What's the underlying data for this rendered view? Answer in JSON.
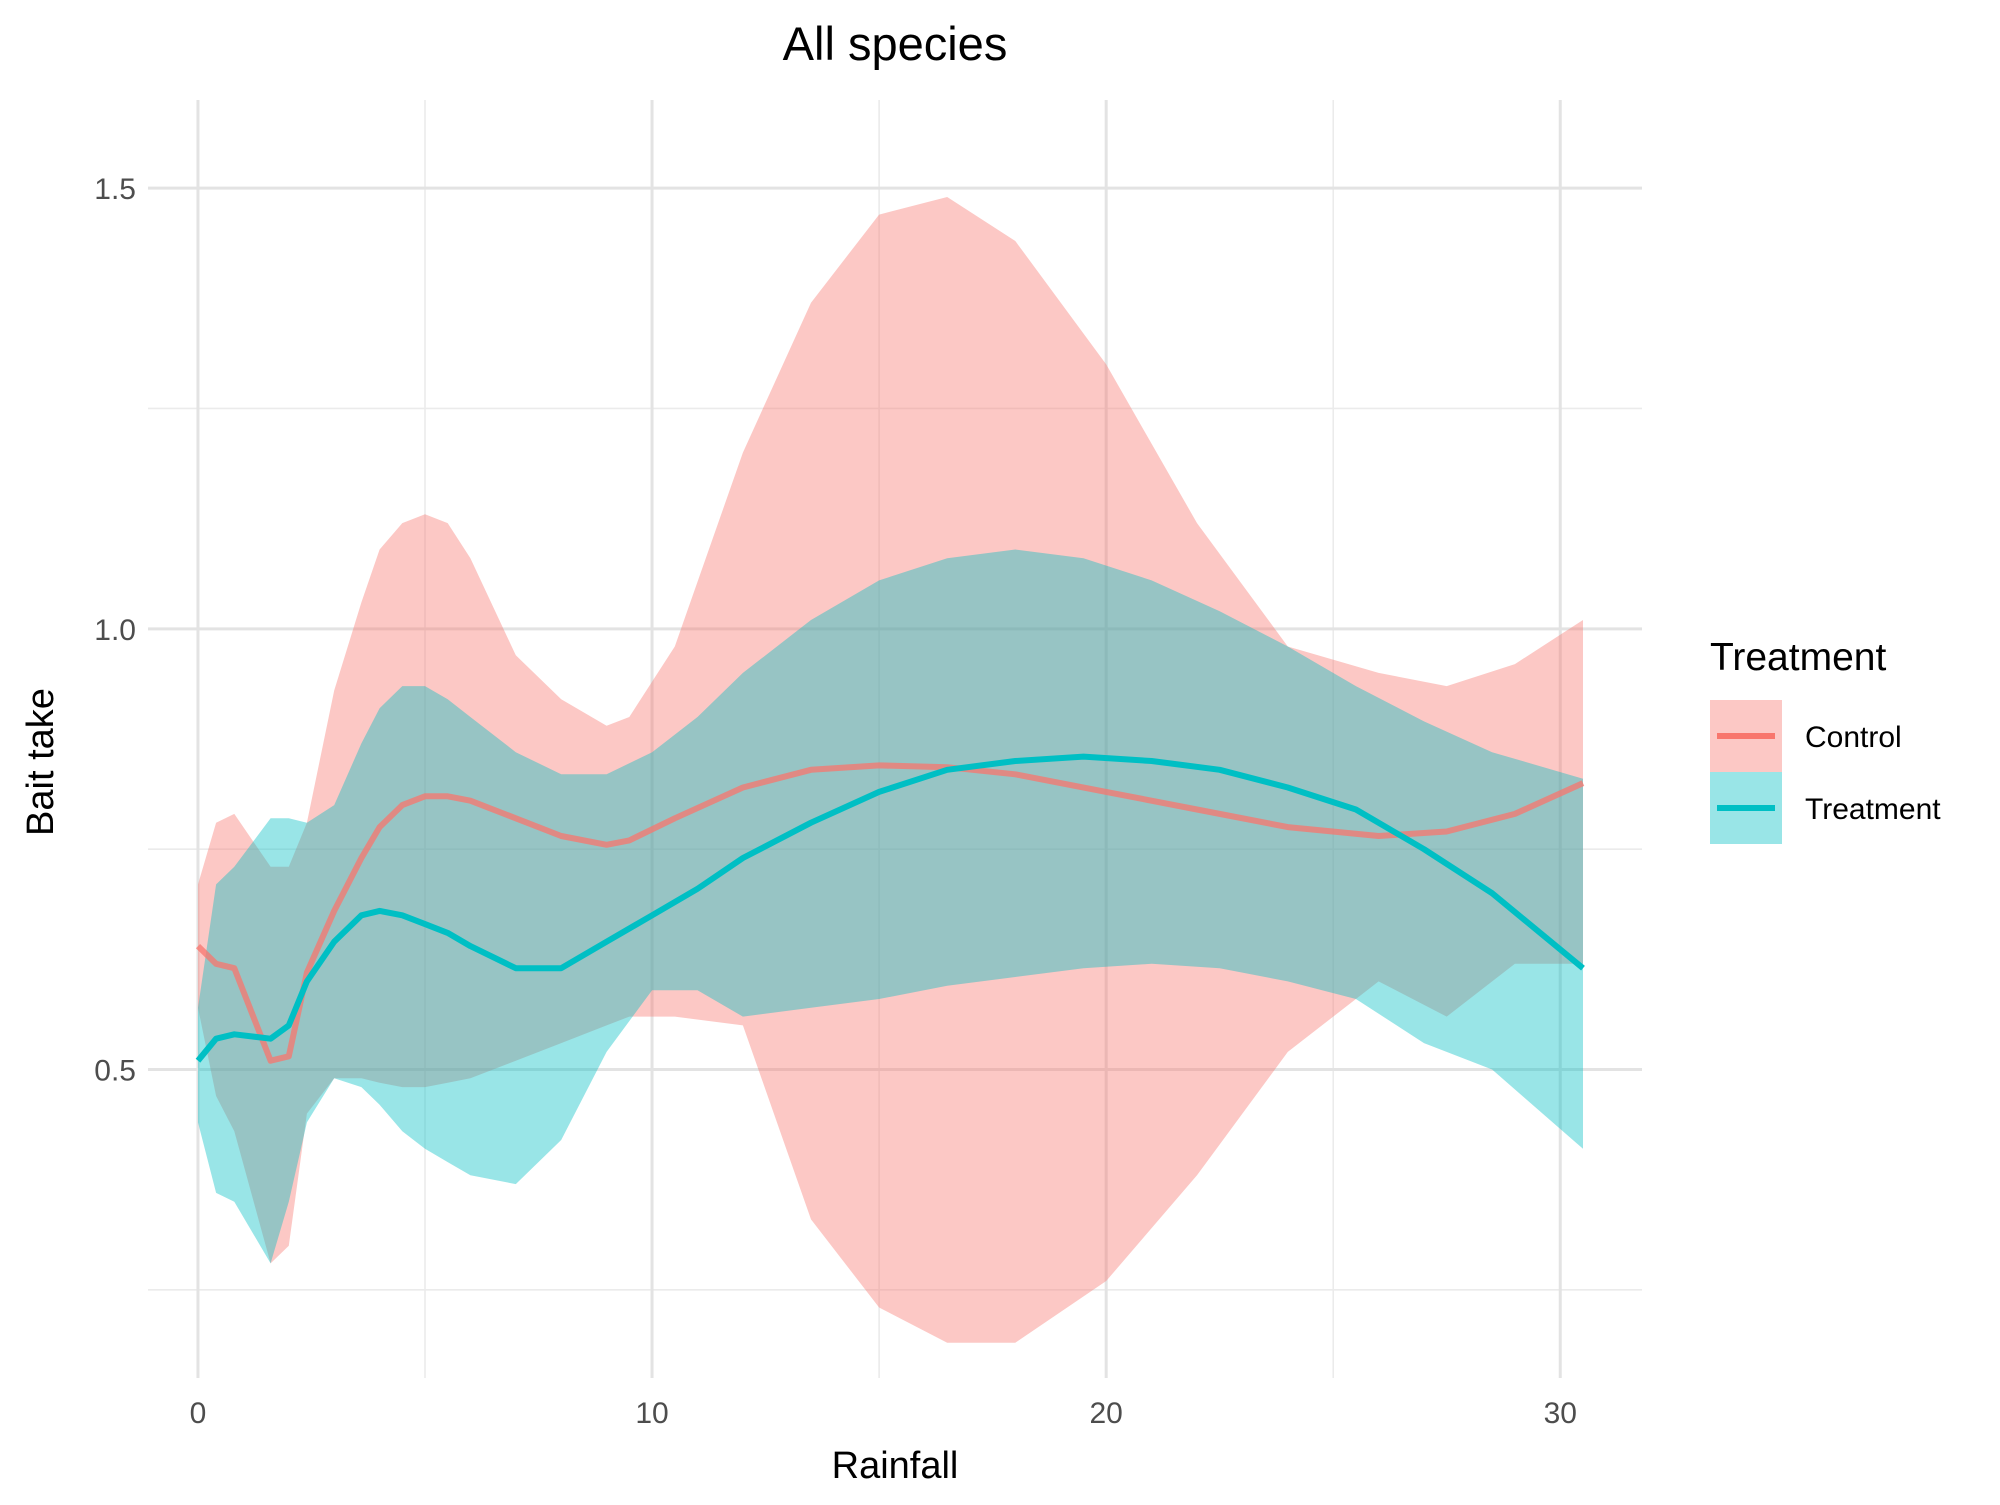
{
  "chart_data": {
    "type": "line",
    "title": "All species",
    "xlabel": "Rainfall",
    "ylabel": "Bait take",
    "xlim": [
      -1.1,
      31.8
    ],
    "ylim": [
      0.15,
      1.6
    ],
    "x_ticks": [
      0,
      10,
      20,
      30
    ],
    "x_tick_labels": [
      "0",
      "10",
      "20",
      "30"
    ],
    "x_minor_ticks": [
      5,
      15,
      25
    ],
    "y_ticks": [
      0.5,
      1.0,
      1.5
    ],
    "y_tick_labels": [
      "0.5",
      "1.0",
      "1.5"
    ],
    "y_minor_ticks": [
      0.25,
      0.75,
      1.25
    ],
    "grid": true,
    "legend": {
      "title": "Treatment",
      "position": "right",
      "entries": [
        "Control",
        "Treatment"
      ]
    },
    "series": [
      {
        "name": "Control",
        "color": "#F8766D",
        "ribbon_color": "#F8766D",
        "x": [
          0,
          0.4,
          0.8,
          1.6,
          2.0,
          2.4,
          3.0,
          3.6,
          4.0,
          4.5,
          5.0,
          5.5,
          6.0,
          7.0,
          8.0,
          9.0,
          9.5,
          10.5,
          12,
          13.5,
          15,
          16.5,
          18,
          20,
          22,
          24,
          26,
          27.5,
          29,
          30.5
        ],
        "y": [
          0.64,
          0.62,
          0.615,
          0.51,
          0.515,
          0.61,
          0.68,
          0.74,
          0.775,
          0.8,
          0.81,
          0.81,
          0.805,
          0.785,
          0.765,
          0.755,
          0.76,
          0.785,
          0.82,
          0.84,
          0.845,
          0.843,
          0.835,
          0.815,
          0.795,
          0.775,
          0.765,
          0.77,
          0.79,
          0.825
        ],
        "lower": [
          0.57,
          0.47,
          0.43,
          0.28,
          0.3,
          0.45,
          0.49,
          0.49,
          0.485,
          0.48,
          0.48,
          0.485,
          0.49,
          0.51,
          0.53,
          0.55,
          0.56,
          0.56,
          0.55,
          0.33,
          0.23,
          0.19,
          0.19,
          0.26,
          0.38,
          0.52,
          0.6,
          0.56,
          0.62,
          0.62
        ],
        "upper": [
          0.71,
          0.78,
          0.79,
          0.73,
          0.73,
          0.78,
          0.93,
          1.03,
          1.09,
          1.12,
          1.13,
          1.12,
          1.08,
          0.97,
          0.92,
          0.89,
          0.9,
          0.98,
          1.2,
          1.37,
          1.47,
          1.49,
          1.44,
          1.3,
          1.12,
          0.98,
          0.95,
          0.935,
          0.96,
          1.01
        ]
      },
      {
        "name": "Treatment",
        "color": "#00BFC4",
        "ribbon_color": "#00BFC4",
        "x": [
          0,
          0.4,
          0.8,
          1.6,
          2.0,
          2.4,
          3.0,
          3.6,
          4.0,
          4.5,
          5.0,
          5.5,
          6.0,
          7.0,
          8.0,
          9.0,
          10,
          11,
          12,
          13.5,
          15,
          16.5,
          18,
          19.5,
          21,
          22.5,
          24,
          25.5,
          27,
          28.5,
          30.5
        ],
        "y": [
          0.51,
          0.535,
          0.54,
          0.535,
          0.55,
          0.6,
          0.645,
          0.675,
          0.68,
          0.675,
          0.665,
          0.655,
          0.64,
          0.615,
          0.615,
          0.645,
          0.675,
          0.705,
          0.74,
          0.78,
          0.815,
          0.84,
          0.85,
          0.855,
          0.85,
          0.84,
          0.82,
          0.795,
          0.75,
          0.7,
          0.615
        ],
        "lower": [
          0.44,
          0.36,
          0.35,
          0.28,
          0.35,
          0.44,
          0.49,
          0.48,
          0.46,
          0.43,
          0.41,
          0.395,
          0.38,
          0.37,
          0.42,
          0.52,
          0.59,
          0.59,
          0.56,
          0.57,
          0.58,
          0.595,
          0.605,
          0.615,
          0.62,
          0.615,
          0.6,
          0.58,
          0.53,
          0.5,
          0.41
        ],
        "upper": [
          0.57,
          0.71,
          0.73,
          0.785,
          0.785,
          0.78,
          0.8,
          0.87,
          0.91,
          0.935,
          0.935,
          0.92,
          0.9,
          0.86,
          0.835,
          0.835,
          0.86,
          0.9,
          0.95,
          1.01,
          1.055,
          1.08,
          1.09,
          1.08,
          1.055,
          1.02,
          0.98,
          0.935,
          0.895,
          0.86,
          0.83
        ]
      }
    ]
  }
}
